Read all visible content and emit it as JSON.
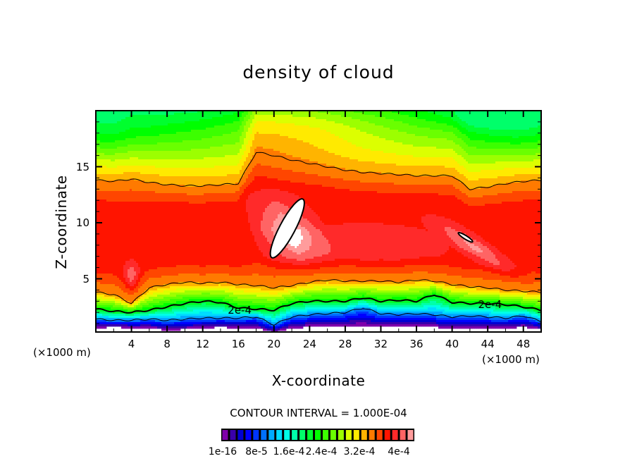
{
  "chart_data": {
    "type": "heatmap",
    "subtype": "filled-contour",
    "title": "density of cloud",
    "xlabel": "X-coordinate",
    "ylabel": "Z-coordinate",
    "x_unit_label": "(×1000 m)",
    "y_unit_label": "(×1000 m)",
    "xlim": [
      0,
      50
    ],
    "ylim": [
      0,
      20
    ],
    "x_ticks": [
      4,
      8,
      12,
      16,
      20,
      24,
      28,
      32,
      36,
      40,
      44,
      48
    ],
    "x_tick_labels": [
      "4",
      "8",
      "12",
      "16",
      "20",
      "24",
      "28",
      "32",
      "36",
      "40",
      "44",
      "48"
    ],
    "x_minor_step": 2,
    "y_ticks": [
      5,
      10,
      15
    ],
    "y_tick_labels": [
      "5",
      "10",
      "15"
    ],
    "y_minor_step": 1,
    "contour_interval_text": "CONTOUR INTERVAL = 1.000E-04",
    "contour_line_labels": [
      {
        "text": "2e-4",
        "x": 16.4,
        "z": 2.2
      },
      {
        "text": "2e-4",
        "x": 44.5,
        "z": 2.7
      }
    ],
    "colorbar": {
      "colors": [
        "#7f00aa",
        "#3a00aa",
        "#0000d2",
        "#0000ff",
        "#0036ff",
        "#0070ff",
        "#00aaff",
        "#00dcff",
        "#00ffe6",
        "#00ffaa",
        "#00ff6a",
        "#00ff2e",
        "#00ff00",
        "#3cff00",
        "#6aff00",
        "#9cff00",
        "#dcff00",
        "#ffea00",
        "#ffb400",
        "#ff7a00",
        "#ff4600",
        "#ff1400",
        "#ff2a2a",
        "#ff6464",
        "#ff9c9c"
      ],
      "labels": [
        "1e-16",
        "8e-5",
        "1.6e-4",
        "2.4e-4",
        "3.2e-4",
        "4e-4"
      ],
      "label_values": [
        1e-16,
        8e-05,
        0.00016,
        0.00024,
        0.00032,
        0.0004
      ]
    },
    "features": {
      "max_region_color": "#ffffff",
      "max_region_center": {
        "x": 21.5,
        "z": 9.5
      },
      "secondary_max_center": {
        "x": 41.5,
        "z": 8.7
      }
    },
    "profiles": {
      "x": [
        0,
        2,
        4,
        6,
        8,
        10,
        12,
        14,
        16,
        18,
        20,
        22,
        24,
        26,
        28,
        30,
        32,
        34,
        36,
        38,
        40,
        42,
        44,
        46,
        48,
        50
      ],
      "cloud_top_z": [
        13.8,
        13.7,
        13.9,
        13.6,
        13.4,
        13.3,
        13.3,
        13.4,
        13.5,
        16.3,
        16.0,
        15.6,
        15.3,
        15.0,
        14.7,
        14.5,
        14.4,
        14.3,
        14.2,
        14.2,
        14.2,
        13.0,
        13.2,
        13.5,
        13.7,
        13.8
      ],
      "cloud_base_z": [
        3.8,
        3.6,
        2.8,
        4.2,
        4.5,
        4.7,
        4.6,
        4.7,
        4.5,
        4.4,
        4.2,
        4.4,
        4.7,
        4.9,
        4.8,
        4.8,
        4.8,
        4.7,
        4.9,
        4.8,
        4.5,
        4.3,
        4.2,
        4.0,
        3.9,
        3.8
      ],
      "contour_2e4_z": [
        2.3,
        2.1,
        2.0,
        2.2,
        2.5,
        2.8,
        3.0,
        2.9,
        2.4,
        2.3,
        2.2,
        2.8,
        3.0,
        3.0,
        3.0,
        3.3,
        3.0,
        3.1,
        3.0,
        3.6,
        2.9,
        2.8,
        2.8,
        2.7,
        2.5,
        2.2
      ],
      "lower_thin_z": [
        1.4,
        1.3,
        1.3,
        1.4,
        1.3,
        1.4,
        1.5,
        1.5,
        1.5,
        1.6,
        0.9,
        1.6,
        1.8,
        1.9,
        2.0,
        2.4,
        1.9,
        1.8,
        1.9,
        1.8,
        1.6,
        1.7,
        1.6,
        1.5,
        1.7,
        1.2
      ],
      "ground_z": [
        0.6,
        0.7,
        0.6,
        0.6,
        0.4,
        0.5,
        0.6,
        0.7,
        0.6,
        0.6,
        0.2,
        0.6,
        0.7,
        0.7,
        0.8,
        0.8,
        0.7,
        0.8,
        0.7,
        0.7,
        0.5,
        0.6,
        0.5,
        0.6,
        0.7,
        0.5
      ]
    }
  }
}
